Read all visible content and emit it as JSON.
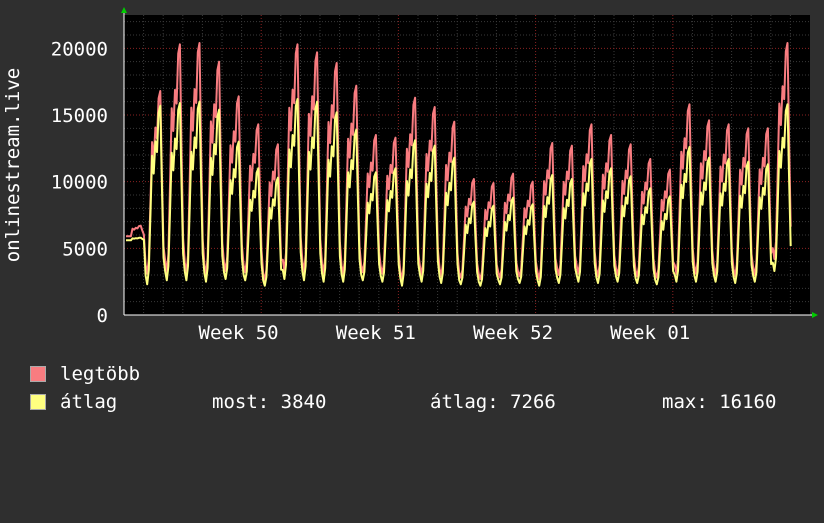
{
  "chart_data": {
    "type": "line",
    "ylabel": "onlinestream.live",
    "ylim": [
      0,
      22500
    ],
    "yticks": [
      0,
      5000,
      10000,
      15000,
      20000
    ],
    "xticks": [
      "Week 50",
      "Week 51",
      "Week 52",
      "Week 01"
    ],
    "xlim_days": [
      0,
      35
    ],
    "xtick_days": [
      7,
      14,
      21,
      28
    ],
    "background": "#000000",
    "grid": true,
    "series": [
      {
        "name": "legtöbb",
        "color": "#f87c80",
        "daily_peaks": [
          6700,
          16800,
          20300,
          20400,
          19000,
          16400,
          14300,
          12800,
          20300,
          19700,
          18900,
          17200,
          13500,
          13300,
          16300,
          15600,
          14500,
          10200,
          9900,
          10600,
          10000,
          12900,
          12700,
          14300,
          13500,
          12800,
          11700,
          10900,
          15800,
          14600,
          14300,
          14000,
          14000,
          20400
        ],
        "daily_mins": [
          5900,
          3100,
          3200,
          3100,
          3000,
          3300,
          3200,
          2600,
          3300,
          3200,
          3100,
          3000,
          3200,
          3100,
          2600,
          3000,
          2900,
          2800,
          2700,
          2800,
          2900,
          2700,
          3000,
          3100,
          2900,
          3000,
          2900,
          2800,
          3100,
          3100,
          3000,
          2900,
          3000,
          4200
        ]
      },
      {
        "name": "átlag",
        "color": "#ffff80",
        "daily_peaks": [
          5800,
          15700,
          15900,
          16000,
          15400,
          13000,
          11000,
          10300,
          16200,
          16000,
          15200,
          13900,
          10700,
          11000,
          13100,
          12700,
          11800,
          8500,
          8200,
          8800,
          8300,
          10500,
          10200,
          11700,
          11000,
          10400,
          9500,
          8900,
          12600,
          11800,
          11700,
          11500,
          11300,
          15800
        ],
        "daily_mins": [
          5600,
          2300,
          2600,
          2600,
          2500,
          2700,
          2600,
          2200,
          2700,
          2600,
          2500,
          2500,
          2600,
          2500,
          2200,
          2500,
          2400,
          2300,
          2200,
          2300,
          2400,
          2200,
          2400,
          2500,
          2400,
          2500,
          2400,
          2300,
          2500,
          2500,
          2500,
          2400,
          2500,
          3300
        ]
      }
    ]
  },
  "legend": {
    "max_label": "legtöbb",
    "avg_label": "átlag",
    "now_text": "most: 3840",
    "avg_text": "átlag: 7266",
    "max_text": "max: 16160"
  }
}
